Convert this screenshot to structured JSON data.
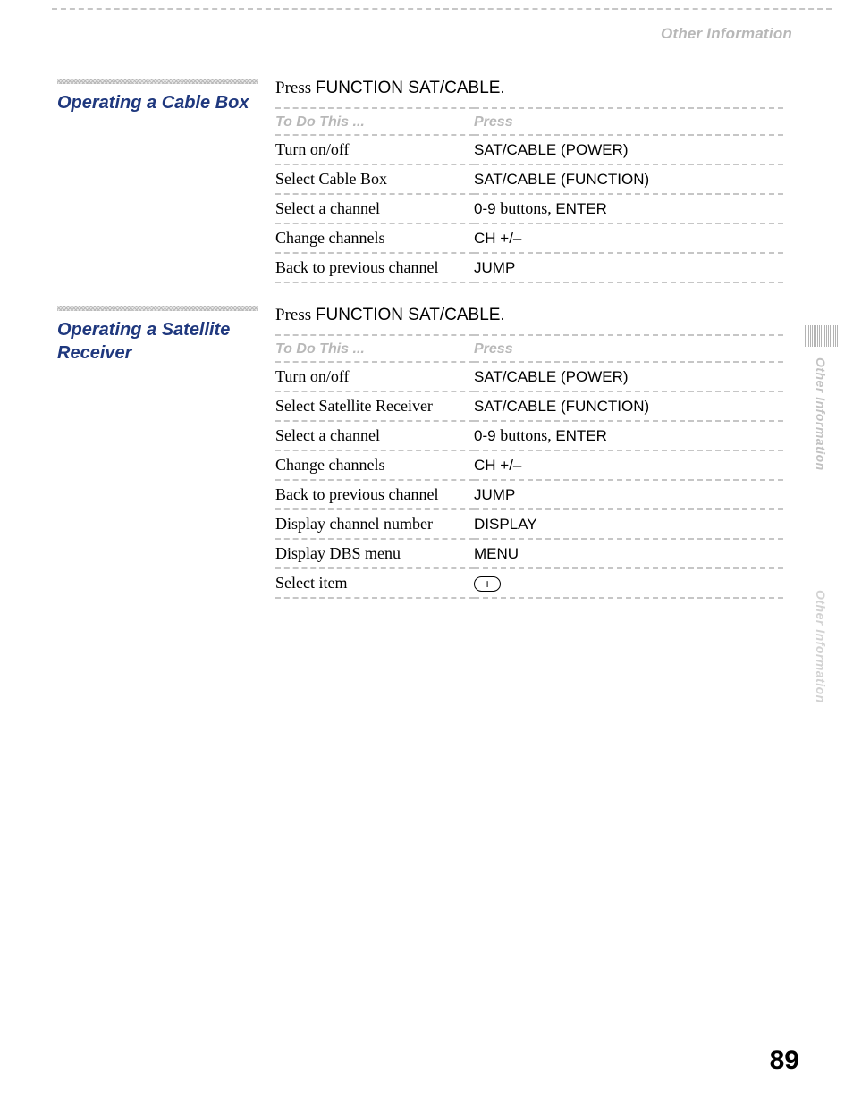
{
  "header": {
    "section_label": "Other Information"
  },
  "side_tab": {
    "label_1": "Other Information",
    "label_2": "Other Information"
  },
  "sections": [
    {
      "heading": "Operating a Cable Box",
      "instruction_prefix": "Press ",
      "instruction_sans": "FUNCTION SAT/CABLE.",
      "col_headers": {
        "c1": "To Do This ...",
        "c2": "Press"
      },
      "rows": [
        {
          "c1": "Turn on/off",
          "c2": "SAT/CABLE (POWER)",
          "c2_type": "sans"
        },
        {
          "c1": "Select Cable Box",
          "c2": "SAT/CABLE (FUNCTION)",
          "c2_type": "sans"
        },
        {
          "c1": "Select a channel",
          "c2_mixed": {
            "sans1": "0-9 ",
            "serif": "buttons, ",
            "sans2": "ENTER"
          }
        },
        {
          "c1": "Change channels",
          "c2": "CH +/–",
          "c2_type": "sans"
        },
        {
          "c1": "Back to previous channel",
          "c2": "JUMP",
          "c2_type": "sans"
        }
      ]
    },
    {
      "heading": "Operating a Satellite Receiver",
      "instruction_prefix": "Press ",
      "instruction_sans": "FUNCTION SAT/CABLE.",
      "col_headers": {
        "c1": "To Do This ...",
        "c2": "Press"
      },
      "rows": [
        {
          "c1": "Turn on/off",
          "c2": "SAT/CABLE (POWER)",
          "c2_type": "sans"
        },
        {
          "c1": "Select Satellite Receiver",
          "c2": "SAT/CABLE (FUNCTION)",
          "c2_type": "sans"
        },
        {
          "c1": "Select a channel",
          "c2_mixed": {
            "sans1": "0-9 ",
            "serif": "buttons, ",
            "sans2": "ENTER"
          }
        },
        {
          "c1": "Change channels",
          "c2": "CH  +/–",
          "c2_type": "sans"
        },
        {
          "c1": "Back to previous channel",
          "c2": "JUMP",
          "c2_type": "sans"
        },
        {
          "c1": "Display channel number",
          "c2": "DISPLAY",
          "c2_type": "sans"
        },
        {
          "c1": "Display DBS menu",
          "c2": "MENU",
          "c2_type": "sans"
        },
        {
          "c1": "Select item",
          "c2_pill": "+"
        }
      ]
    }
  ],
  "page_number": "89",
  "colors": {
    "heading_blue": "#1f387e",
    "muted_gray": "#b8b8b8",
    "dash_gray": "#c6c6c6",
    "black": "#000000",
    "white": "#ffffff"
  },
  "typography": {
    "heading_family": "Helvetica Neue",
    "body_family": "Times New Roman",
    "heading_size_pt": 15,
    "body_size_pt": 14,
    "pagenum_size_pt": 22
  }
}
